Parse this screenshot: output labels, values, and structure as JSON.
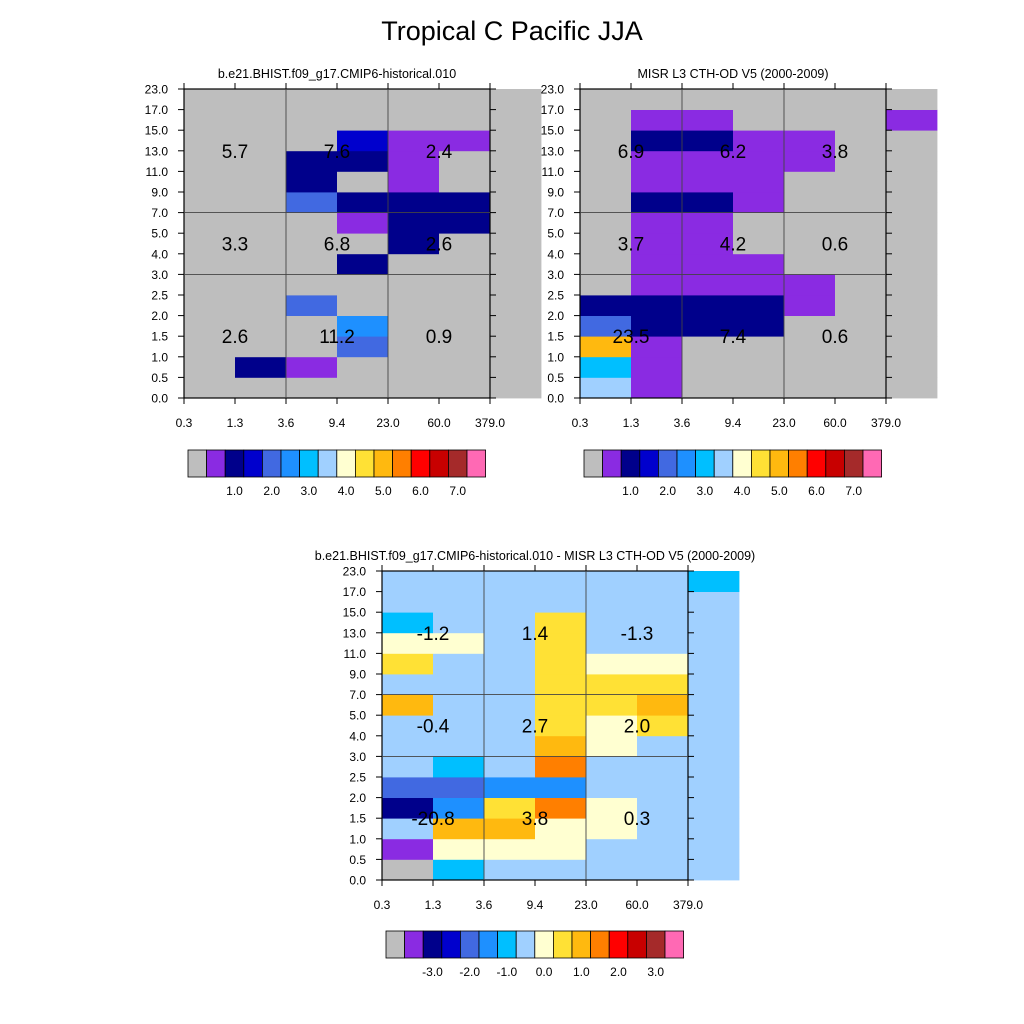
{
  "title": "Tropical C Pacific JJA",
  "x_ticks": [
    "0.3",
    "1.3",
    "3.6",
    "9.4",
    "23.0",
    "60.0",
    "379.0"
  ],
  "y_ticks": [
    "0.0",
    "0.5",
    "1.0",
    "1.5",
    "2.0",
    "2.5",
    "3.0",
    "4.0",
    "5.0",
    "7.0",
    "9.0",
    "11.0",
    "13.0",
    "15.0",
    "17.0",
    "23.0"
  ],
  "palette": [
    "#bebebe",
    "#8a2be2",
    "#00008b",
    "#0000cd",
    "#4169e1",
    "#1e90ff",
    "#00bfff",
    "#a0d0ff",
    "#ffffd1",
    "#ffe135",
    "#ffb90f",
    "#ff7f00",
    "#ff0000",
    "#c80000",
    "#a52a2a",
    "#ff69b4"
  ],
  "chart_data": [
    {
      "type": "heatmap",
      "title": "b.e21.BHIST.f09_g17.CMIP6-historical.010",
      "colorbar_labels": [
        "1.0",
        "2.0",
        "3.0",
        "4.0",
        "5.0",
        "6.0",
        "7.0"
      ],
      "cell_colors": [
        [
          0,
          0,
          0,
          0,
          0,
          0,
          0,
          0,
          0,
          0,
          0,
          0,
          0,
          0,
          0
        ],
        [
          0,
          2,
          0,
          0,
          0,
          0,
          0,
          0,
          0,
          0,
          0,
          0,
          0,
          0,
          0
        ],
        [
          0,
          1,
          0,
          0,
          4,
          0,
          0,
          0,
          0,
          4,
          2,
          2,
          0,
          0,
          0
        ],
        [
          0,
          0,
          4,
          5,
          0,
          0,
          2,
          0,
          1,
          2,
          0,
          2,
          3,
          0,
          0
        ],
        [
          0,
          0,
          0,
          0,
          0,
          0,
          0,
          2,
          2,
          2,
          1,
          1,
          1,
          0,
          0
        ],
        [
          0,
          0,
          0,
          0,
          0,
          0,
          0,
          0,
          2,
          2,
          0,
          0,
          1,
          0,
          0
        ],
        [
          0,
          0,
          0,
          0,
          0,
          0,
          0,
          0,
          0,
          0,
          0,
          0,
          0,
          0,
          0
        ]
      ],
      "box_values": [
        [
          "2.6",
          "11.2",
          "0.9"
        ],
        [
          "3.3",
          "6.8",
          "2.6"
        ],
        [
          "5.7",
          "7.6",
          "2.4"
        ]
      ]
    },
    {
      "type": "heatmap",
      "title": "MISR L3 CTH-OD V5 (2000-2009)",
      "colorbar_labels": [
        "1.0",
        "2.0",
        "3.0",
        "4.0",
        "5.0",
        "6.0",
        "7.0"
      ],
      "cell_colors": [
        [
          7,
          6,
          10,
          4,
          2,
          0,
          0,
          0,
          0,
          0,
          0,
          0,
          0,
          0,
          0
        ],
        [
          1,
          1,
          1,
          2,
          2,
          1,
          1,
          1,
          1,
          2,
          1,
          1,
          2,
          1,
          0
        ],
        [
          0,
          0,
          0,
          2,
          2,
          1,
          1,
          1,
          1,
          2,
          1,
          1,
          2,
          1,
          0
        ],
        [
          0,
          0,
          0,
          2,
          2,
          1,
          1,
          0,
          0,
          1,
          1,
          1,
          1,
          0,
          0
        ],
        [
          0,
          0,
          0,
          0,
          1,
          1,
          0,
          0,
          0,
          0,
          0,
          1,
          1,
          0,
          0
        ],
        [
          0,
          0,
          0,
          0,
          0,
          0,
          0,
          0,
          0,
          0,
          0,
          0,
          0,
          0,
          0
        ],
        [
          0,
          0,
          0,
          0,
          0,
          0,
          0,
          0,
          0,
          0,
          0,
          0,
          0,
          1,
          0
        ]
      ],
      "box_values": [
        [
          "23.5",
          "7.4",
          "0.6"
        ],
        [
          "3.7",
          "4.2",
          "0.6"
        ],
        [
          "6.9",
          "6.2",
          "3.8"
        ]
      ]
    },
    {
      "type": "heatmap",
      "title": "b.e21.BHIST.f09_g17.CMIP6-historical.010 - MISR L3 CTH-OD V5 (2000-2009)",
      "colorbar_labels": [
        "-3.0",
        "-2.0",
        "-1.0",
        "0.0",
        "1.0",
        "2.0",
        "3.0"
      ],
      "cell_colors": [
        [
          0,
          1,
          7,
          2,
          4,
          7,
          7,
          7,
          10,
          7,
          9,
          8,
          6,
          7,
          7
        ],
        [
          6,
          8,
          10,
          5,
          4,
          6,
          7,
          7,
          7,
          7,
          7,
          8,
          7,
          7,
          7
        ],
        [
          7,
          8,
          10,
          9,
          5,
          7,
          7,
          7,
          7,
          7,
          7,
          7,
          7,
          7,
          7
        ],
        [
          7,
          8,
          8,
          11,
          5,
          11,
          10,
          9,
          9,
          9,
          9,
          9,
          9,
          7,
          7
        ],
        [
          7,
          7,
          8,
          8,
          7,
          7,
          8,
          8,
          9,
          9,
          8,
          7,
          7,
          7,
          7
        ],
        [
          7,
          7,
          7,
          7,
          7,
          7,
          7,
          9,
          10,
          9,
          8,
          7,
          7,
          7,
          7
        ],
        [
          7,
          7,
          7,
          7,
          7,
          7,
          7,
          7,
          7,
          7,
          7,
          7,
          7,
          7,
          6
        ]
      ],
      "box_values": [
        [
          "-20.8",
          "3.8",
          "0.3"
        ],
        [
          "-0.4",
          "2.7",
          "2.0"
        ],
        [
          "-1.2",
          "1.4",
          "-1.3"
        ]
      ]
    }
  ]
}
